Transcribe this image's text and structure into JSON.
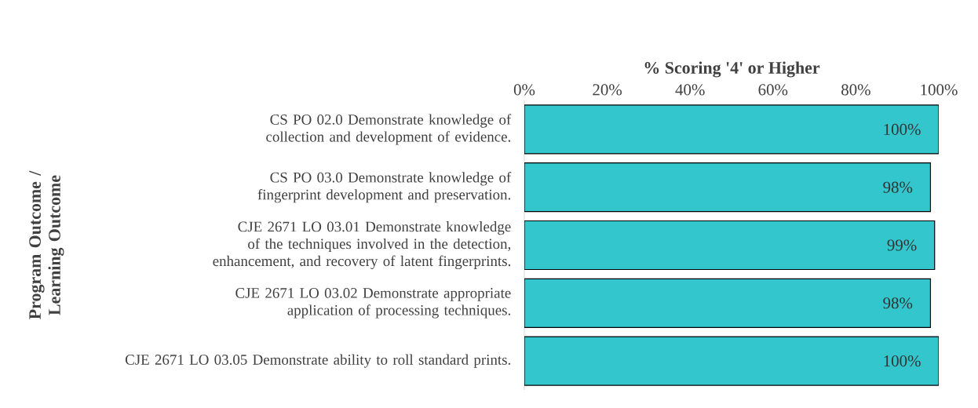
{
  "chart_data": {
    "type": "bar",
    "orientation": "horizontal",
    "xlabel": "% Scoring '4' or Higher",
    "ylabel": "Program Outcome / Learning Outcome",
    "categories": [
      "CS PO 02.0 Demonstrate knowledge of collection and development of evidence.",
      "CS PO 03.0 Demonstrate knowledge of fingerprint development and preservation.",
      "CJE 2671 LO 03.01 Demonstrate knowledge of the techniques involved in the detection, enhancement, and recovery of latent fingerprints.",
      "CJE 2671 LO 03.02 Demonstrate appropriate application of processing techniques.",
      "CJE 2671 LO 03.05 Demonstrate ability to roll standard prints."
    ],
    "values": [
      100,
      98,
      99,
      98,
      100
    ],
    "value_labels": [
      "100%",
      "98%",
      "99%",
      "98%",
      "100%"
    ],
    "color": "#33c6cc",
    "xlim": [
      0,
      100
    ],
    "xticks": [
      {
        "value": 0,
        "label": "0%"
      },
      {
        "value": 20,
        "label": "20%"
      },
      {
        "value": 40,
        "label": "40%"
      },
      {
        "value": 60,
        "label": "60%"
      },
      {
        "value": 80,
        "label": "80%"
      },
      {
        "value": 100,
        "label": "100%"
      }
    ],
    "grid": false
  }
}
